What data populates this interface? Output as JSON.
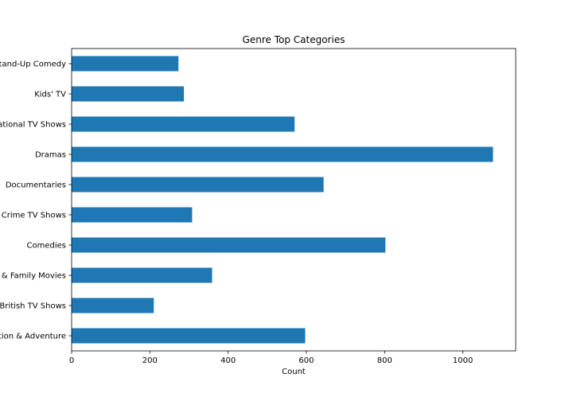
{
  "chart_data": {
    "type": "bar",
    "orientation": "horizontal",
    "title": "Genre Top Categories",
    "xlabel": "Count",
    "ylabel": "",
    "xlim": [
      0,
      1135
    ],
    "xticks": [
      0,
      200,
      400,
      600,
      800,
      1000
    ],
    "grid": false,
    "legend": "none",
    "bar_color": "#1f77b4",
    "categories": [
      "Stand-Up Comedy",
      "Kids' TV",
      "International TV Shows",
      "Dramas",
      "Documentaries",
      "Crime TV Shows",
      "Comedies",
      "Children & Family Movies",
      "British TV Shows",
      "Action & Adventure"
    ],
    "values": [
      273,
      287,
      570,
      1077,
      644,
      308,
      802,
      359,
      210,
      597
    ]
  }
}
